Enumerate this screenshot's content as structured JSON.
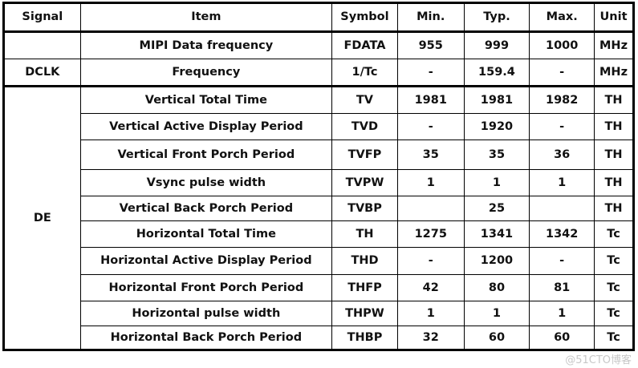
{
  "headers": [
    "Signal",
    "Item",
    "Symbol",
    "Min.",
    "Typ.",
    "Max.",
    "Unit"
  ],
  "rows": [
    {
      "signal": "",
      "item": "MIPI Data frequency",
      "symbol": "FDATA",
      "min": "955",
      "typ": "999",
      "max": "1000",
      "unit": "MHz"
    },
    {
      "signal": "DCLK",
      "item": "Frequency",
      "symbol": "1/Tc",
      "min": "-",
      "typ": "159.4",
      "max": "-",
      "unit": "MHz"
    },
    {
      "signal": "DE",
      "item": "Vertical Total Time",
      "symbol": "TV",
      "min": "1981",
      "typ": "1981",
      "max": "1982",
      "unit": "TH"
    },
    {
      "item": "Vertical Active Display Period",
      "symbol": "TVD",
      "min": "-",
      "typ": "1920",
      "max": "-",
      "unit": "TH"
    },
    {
      "item": "Vertical Front Porch Period",
      "symbol": "TVFP",
      "min": "35",
      "typ": "35",
      "max": "36",
      "unit": "TH"
    },
    {
      "item": "Vsync pulse width",
      "symbol": "TVPW",
      "min": "1",
      "typ": "1",
      "max": "1",
      "unit": "TH"
    },
    {
      "item": "Vertical Back Porch Period",
      "symbol": "TVBP",
      "min": "",
      "typ": "25",
      "max": "",
      "unit": "TH"
    },
    {
      "item": "Horizontal Total Time",
      "symbol": "TH",
      "min": "1275",
      "typ": "1341",
      "max": "1342",
      "unit": "Tc"
    },
    {
      "item": "Horizontal Active Display Period",
      "symbol": "THD",
      "min": "-",
      "typ": "1200",
      "max": "-",
      "unit": "Tc"
    },
    {
      "item": "Horizontal Front Porch Period",
      "symbol": "THFP",
      "min": "42",
      "typ": "80",
      "max": "81",
      "unit": "Tc"
    },
    {
      "item": "Horizontal pulse width",
      "symbol": "THPW",
      "min": "1",
      "typ": "1",
      "max": "1",
      "unit": "Tc"
    },
    {
      "item": "Horizontal Back Porch Period",
      "symbol": "THBP",
      "min": "32",
      "typ": "60",
      "max": "60",
      "unit": "Tc"
    }
  ],
  "watermark": "@51CTO博客"
}
